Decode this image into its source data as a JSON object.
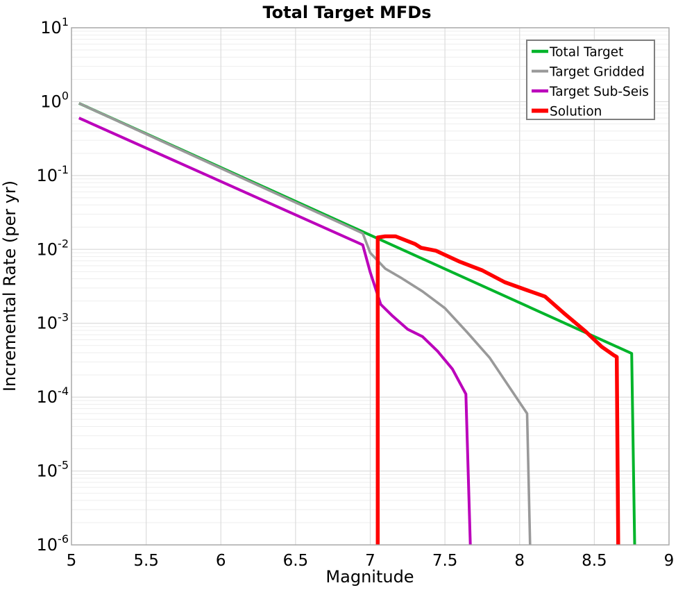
{
  "chart_data": {
    "type": "line",
    "title": "Total Target MFDs",
    "xlabel": "Magnitude",
    "ylabel": "Incremental Rate (per yr)",
    "x_axis": {
      "min": 5,
      "max": 9,
      "tick_values": [
        5,
        5.5,
        6,
        6.5,
        7,
        7.5,
        8,
        8.5,
        9
      ],
      "tick_labels": [
        "5",
        "5.5",
        "6",
        "6.5",
        "7",
        "7.5",
        "8",
        "8.5",
        "9"
      ]
    },
    "y_axis": {
      "scale": "log",
      "min": 1e-06,
      "max": 10,
      "tick_exponents": [
        1,
        0,
        -1,
        -2,
        -3,
        -4,
        -5,
        -6
      ],
      "tick_base": "10"
    },
    "grid": {
      "show_minor": true,
      "major_color": "#dcdcdc",
      "minor_color": "#eeeeee",
      "border_color": "#a8a8a8"
    },
    "legend": {
      "position": "top-right",
      "border_color": "#7f7f7f",
      "background": "#ffffff"
    },
    "series": [
      {
        "name": "Total Target",
        "color": "#00b42a",
        "line_width": 4,
        "points": [
          [
            5.05,
            0.95
          ],
          [
            8.75,
            0.00039
          ],
          [
            8.77,
            1e-06
          ]
        ]
      },
      {
        "name": "Target Gridded",
        "color": "#999999",
        "line_width": 3.6,
        "points": [
          [
            5.05,
            0.95
          ],
          [
            6.95,
            0.0165
          ],
          [
            7.0,
            0.009
          ],
          [
            7.1,
            0.0055
          ],
          [
            7.2,
            0.0042
          ],
          [
            7.35,
            0.0027
          ],
          [
            7.5,
            0.0016
          ],
          [
            7.65,
            0.00075
          ],
          [
            7.8,
            0.00034
          ],
          [
            7.95,
            0.00012
          ],
          [
            8.05,
            6e-05
          ],
          [
            8.07,
            1e-06
          ]
        ]
      },
      {
        "name": "Target Sub-Seis",
        "color": "#bb00bb",
        "line_width": 4,
        "points": [
          [
            5.05,
            0.6
          ],
          [
            6.95,
            0.0115
          ],
          [
            7.0,
            0.0049
          ],
          [
            7.07,
            0.0018
          ],
          [
            7.15,
            0.00125
          ],
          [
            7.25,
            0.00083
          ],
          [
            7.35,
            0.00066
          ],
          [
            7.45,
            0.00042
          ],
          [
            7.55,
            0.00024
          ],
          [
            7.64,
            0.00011
          ],
          [
            7.67,
            1e-06
          ]
        ]
      },
      {
        "name": "Solution",
        "color": "#ff0000",
        "line_width": 5.5,
        "points": [
          [
            7.05,
            1e-06
          ],
          [
            7.05,
            0.0145
          ],
          [
            7.1,
            0.015
          ],
          [
            7.17,
            0.015
          ],
          [
            7.3,
            0.0118
          ],
          [
            7.34,
            0.0105
          ],
          [
            7.44,
            0.0096
          ],
          [
            7.6,
            0.0068
          ],
          [
            7.75,
            0.0052
          ],
          [
            7.9,
            0.0036
          ],
          [
            8.05,
            0.0028
          ],
          [
            8.17,
            0.0023
          ],
          [
            8.3,
            0.00135
          ],
          [
            8.44,
            0.00078
          ],
          [
            8.55,
            0.00048
          ],
          [
            8.63,
            0.00037
          ],
          [
            8.65,
            0.00035
          ],
          [
            8.66,
            1e-06
          ]
        ]
      }
    ]
  }
}
